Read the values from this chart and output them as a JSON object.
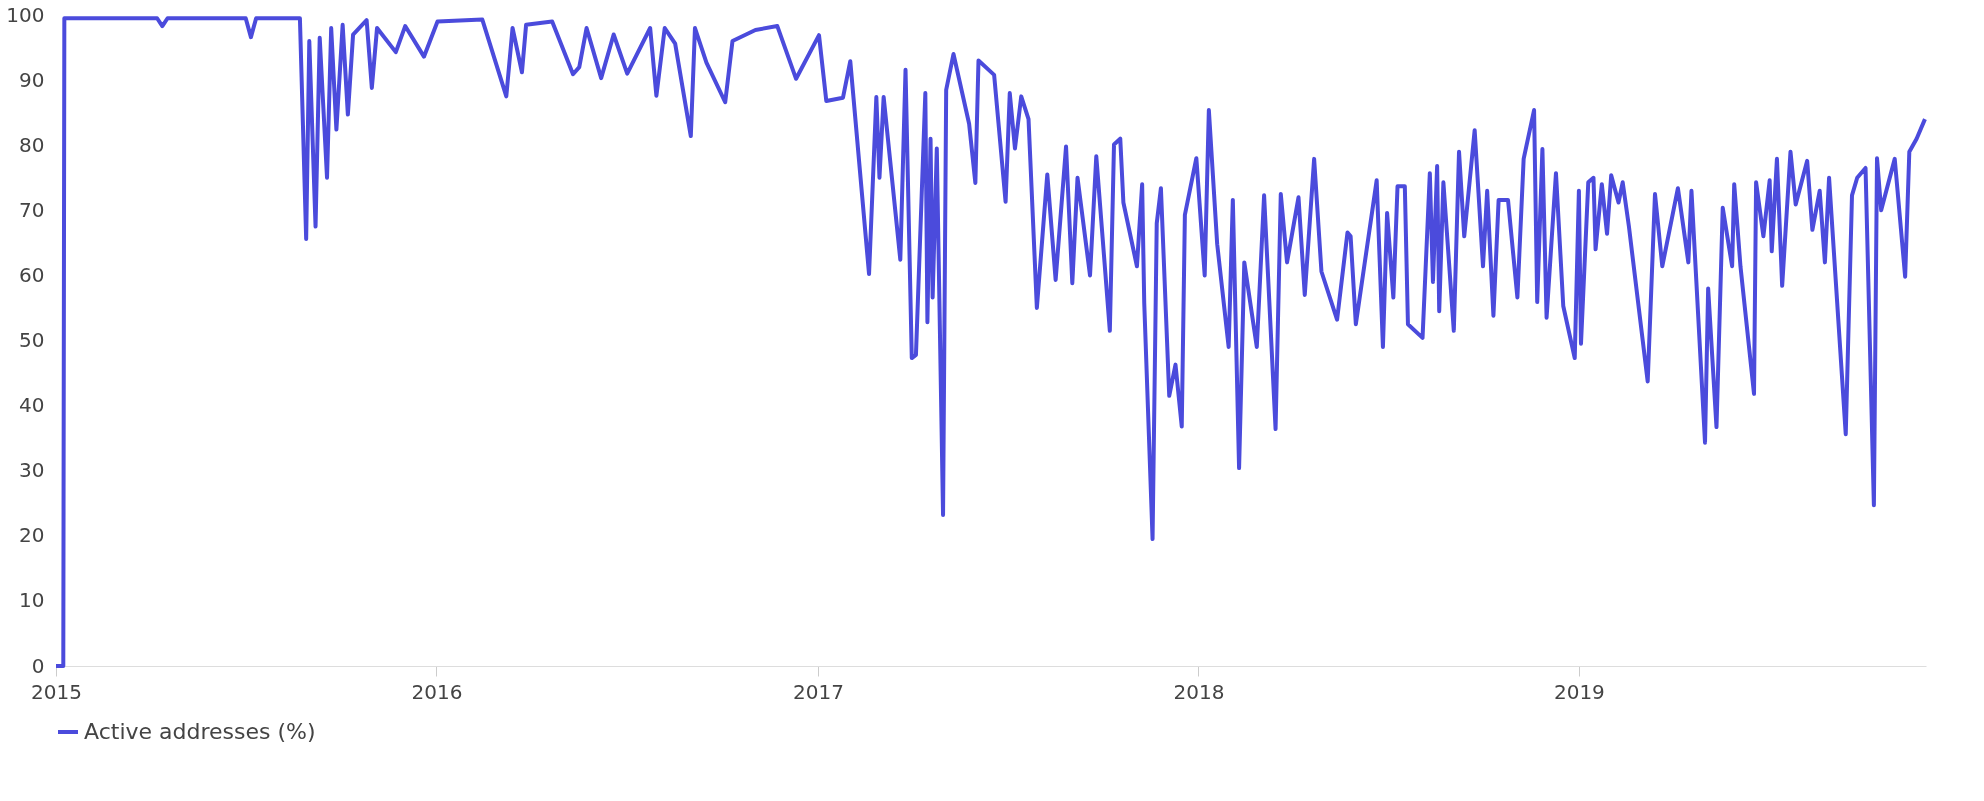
{
  "chart_data": {
    "type": "line",
    "x": [
      "2015-01-01",
      "2015-01-08",
      "2015-01-09",
      "2015-04-08",
      "2015-04-13",
      "2015-04-18",
      "2015-07-02",
      "2015-07-07",
      "2015-07-12",
      "2015-08-23",
      "2015-08-29",
      "2015-09-01",
      "2015-09-07",
      "2015-09-11",
      "2015-09-18",
      "2015-09-22",
      "2015-09-27",
      "2015-10-03",
      "2015-10-08",
      "2015-10-13",
      "2015-10-26",
      "2015-10-31",
      "2015-11-05",
      "2015-11-23",
      "2015-12-02",
      "2015-12-20",
      "2016-01-02",
      "2016-02-14",
      "2016-03-08",
      "2016-03-14",
      "2016-03-23",
      "2016-03-27",
      "2016-04-21",
      "2016-05-11",
      "2016-05-17",
      "2016-05-24",
      "2016-06-07",
      "2016-06-19",
      "2016-07-02",
      "2016-07-24",
      "2016-07-30",
      "2016-08-07",
      "2016-08-17",
      "2016-09-01",
      "2016-09-05",
      "2016-09-16",
      "2016-10-04",
      "2016-10-11",
      "2016-11-02",
      "2016-11-23",
      "2016-12-11",
      "2017-01-02",
      "2017-01-09",
      "2017-01-25",
      "2017-02-01",
      "2017-02-19",
      "2017-02-26",
      "2017-03-01",
      "2017-03-05",
      "2017-03-21",
      "2017-03-26",
      "2017-04-01",
      "2017-04-05",
      "2017-04-14",
      "2017-04-16",
      "2017-04-19",
      "2017-04-21",
      "2017-04-25",
      "2017-05-01",
      "2017-05-04",
      "2017-05-11",
      "2017-05-26",
      "2017-06-01",
      "2017-06-04",
      "2017-06-19",
      "2017-06-30",
      "2017-07-04",
      "2017-07-09",
      "2017-07-15",
      "2017-07-22",
      "2017-07-30",
      "2017-08-09",
      "2017-08-17",
      "2017-08-27",
      "2017-09-02",
      "2017-09-07",
      "2017-09-19",
      "2017-09-25",
      "2017-10-08",
      "2017-10-12",
      "2017-10-18",
      "2017-10-21",
      "2017-11-03",
      "2017-11-08",
      "2017-11-10",
      "2017-11-18",
      "2017-11-22",
      "2017-11-26",
      "2017-12-04",
      "2017-12-10",
      "2017-12-16",
      "2017-12-19",
      "2017-12-30",
      "2018-01-07",
      "2018-01-11",
      "2018-01-19",
      "2018-01-30",
      "2018-02-03",
      "2018-02-09",
      "2018-02-14",
      "2018-02-26",
      "2018-03-05",
      "2018-03-16",
      "2018-03-21",
      "2018-03-27",
      "2018-04-07",
      "2018-04-13",
      "2018-04-22",
      "2018-04-29",
      "2018-05-14",
      "2018-05-24",
      "2018-05-27",
      "2018-06-01",
      "2018-06-21",
      "2018-06-27",
      "2018-07-01",
      "2018-07-07",
      "2018-07-11",
      "2018-07-18",
      "2018-07-21",
      "2018-08-04",
      "2018-08-11",
      "2018-08-14",
      "2018-08-18",
      "2018-08-20",
      "2018-08-24",
      "2018-09-03",
      "2018-09-08",
      "2018-09-13",
      "2018-09-23",
      "2018-10-01",
      "2018-10-05",
      "2018-10-11",
      "2018-10-16",
      "2018-10-25",
      "2018-11-03",
      "2018-11-09",
      "2018-11-19",
      "2018-11-22",
      "2018-11-27",
      "2018-12-01",
      "2018-12-10",
      "2018-12-17",
      "2018-12-28",
      "2019-01-01",
      "2019-01-03",
      "2019-01-10",
      "2019-01-15",
      "2019-01-17",
      "2019-01-23",
      "2019-01-28",
      "2019-02-01",
      "2019-02-08",
      "2019-02-12",
      "2019-02-18",
      "2019-03-08",
      "2019-03-15",
      "2019-03-22",
      "2019-03-29",
      "2019-04-06",
      "2019-04-16",
      "2019-04-19",
      "2019-05-02",
      "2019-05-05",
      "2019-05-13",
      "2019-05-19",
      "2019-05-28",
      "2019-05-30",
      "2019-06-05",
      "2019-06-18",
      "2019-06-20",
      "2019-06-27",
      "2019-07-03",
      "2019-07-05",
      "2019-07-10",
      "2019-07-15",
      "2019-07-23",
      "2019-07-28",
      "2019-08-08",
      "2019-08-13",
      "2019-08-20",
      "2019-08-25",
      "2019-08-29",
      "2019-09-14",
      "2019-09-20",
      "2019-09-25",
      "2019-10-03",
      "2019-10-11",
      "2019-10-14",
      "2019-10-18",
      "2019-10-31",
      "2019-11-10",
      "2019-11-14",
      "2019-11-21",
      "2019-11-29"
    ],
    "series": [
      {
        "name": "Active addresses (%)",
        "color": "#4b4bdc",
        "values": [
          0,
          0,
          99.5,
          99.5,
          98.3,
          99.5,
          99.5,
          96.6,
          99.5,
          99.5,
          65.6,
          96,
          67.5,
          96.5,
          75,
          98,
          82.4,
          98.5,
          84.7,
          97,
          99.2,
          88.8,
          98,
          94.3,
          98.3,
          93.6,
          99,
          99.3,
          87.5,
          98,
          91.2,
          98.5,
          99,
          90.9,
          92,
          98,
          90.3,
          97,
          91,
          98,
          87.6,
          98,
          95.6,
          81.4,
          98,
          92.7,
          86.6,
          96,
          97.7,
          98.3,
          90.2,
          96.9,
          86.8,
          87.3,
          92.9,
          60.2,
          87.4,
          75,
          87.4,
          62.4,
          91.6,
          47.3,
          47.8,
          88,
          52.8,
          81,
          56.6,
          79.5,
          23.2,
          88.5,
          94,
          83.3,
          74.2,
          93,
          90.8,
          71.3,
          88,
          79.5,
          87.5,
          84,
          55,
          75.5,
          59.3,
          79.8,
          58.8,
          75,
          60,
          78.3,
          51.5,
          80.1,
          81,
          71.2,
          61.4,
          74,
          55.8,
          19.5,
          68,
          73.4,
          41.5,
          46.3,
          36.8,
          69.3,
          78,
          60,
          85.4,
          64.8,
          49,
          71.6,
          30.4,
          62,
          49,
          72.3,
          36.4,
          72.5,
          62,
          72,
          57,
          77.9,
          60.6,
          53.2,
          66.6,
          66,
          52.5,
          74.6,
          49,
          69.6,
          56.6,
          73.7,
          73.7,
          52.5,
          50.4,
          75.7,
          59,
          76.8,
          54.5,
          74.3,
          51.5,
          79,
          66,
          82.3,
          61.4,
          73,
          53.8,
          71.6,
          71.6,
          56.6,
          77.9,
          85.4,
          55.9,
          79.4,
          53.5,
          75.7,
          55.3,
          47.3,
          73,
          49.5,
          74.3,
          75,
          64,
          74,
          66.4,
          75.4,
          71.2,
          74.3,
          67.5,
          43.7,
          72.5,
          61.4,
          67,
          73.4,
          62,
          73,
          34.3,
          58,
          36.7,
          70.4,
          61.4,
          74,
          61.4,
          41.8,
          74.3,
          66,
          74.6,
          63.7,
          77.9,
          58.4,
          79,
          70.9,
          77.6,
          67,
          73,
          62,
          75,
          35.6,
          72.3,
          75,
          76.5,
          24.7,
          78,
          70,
          77.9,
          59.8,
          79,
          81,
          84
        ]
      }
    ],
    "xlim": [
      "2015-01-01",
      "2019-11-30"
    ],
    "xticks": [
      {
        "value": "2015-01-01",
        "label": "2015"
      },
      {
        "value": "2016-01-01",
        "label": "2016"
      },
      {
        "value": "2017-01-01",
        "label": "2017"
      },
      {
        "value": "2018-01-01",
        "label": "2018"
      },
      {
        "value": "2019-01-01",
        "label": "2019"
      }
    ],
    "ylim": [
      0,
      100
    ],
    "yticks": [
      0,
      10,
      20,
      30,
      40,
      50,
      60,
      70,
      80,
      90,
      100
    ],
    "grid": false,
    "legend": "bottom",
    "marker": "none",
    "line_style": "solid"
  }
}
